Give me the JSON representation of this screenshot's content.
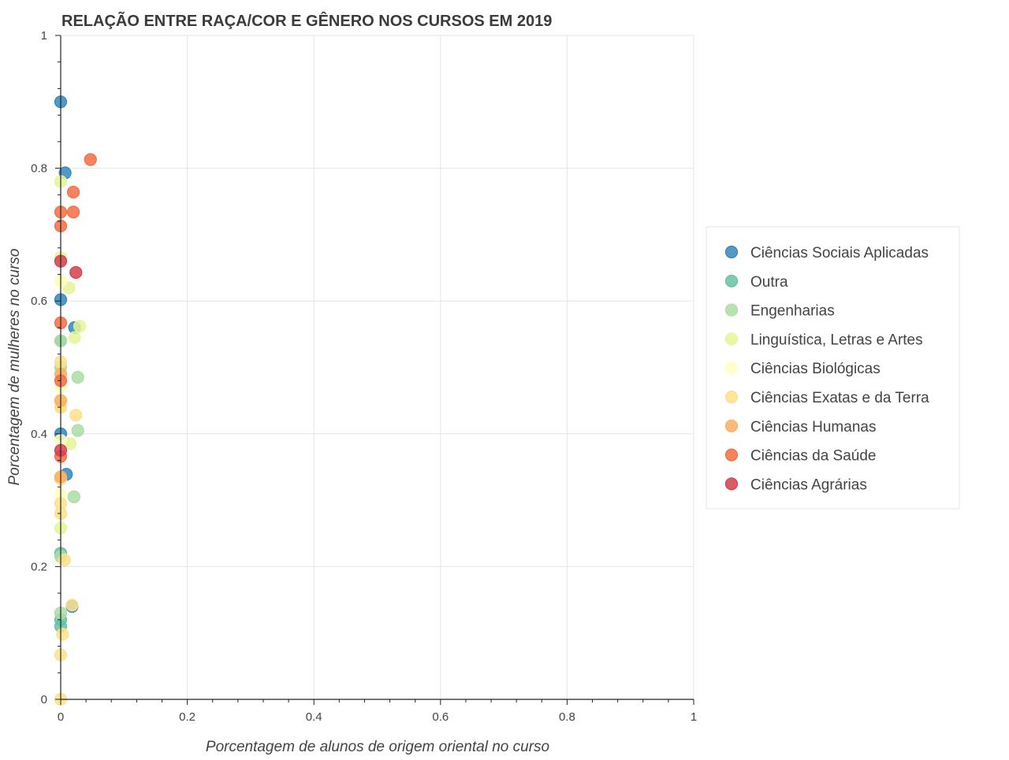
{
  "chart_data": {
    "type": "scatter",
    "title": "RELAÇÃO ENTRE RAÇA/COR E GÊNERO NOS CURSOS EM 2019",
    "xlabel": "Porcentagem de alunos de origem oriental no curso",
    "ylabel": "Porcentagem de mulheres no curso",
    "xlim": [
      0,
      1
    ],
    "ylim": [
      0,
      1
    ],
    "x_ticks": [
      "0",
      "0.2",
      "0.4",
      "0.6",
      "0.8",
      "1"
    ],
    "y_ticks": [
      "0",
      "0.2",
      "0.4",
      "0.6",
      "0.8",
      "1"
    ],
    "grid": true,
    "legend_position": "right",
    "series": [
      {
        "name": "Ciências Sociais Aplicadas",
        "color": "#3288bd",
        "points": [
          [
            0.0,
            0.9
          ],
          [
            0.007,
            0.793
          ],
          [
            0.0,
            0.602
          ],
          [
            0.022,
            0.56
          ],
          [
            0.009,
            0.339
          ],
          [
            0.0,
            0.4
          ],
          [
            0.018,
            0.14
          ]
        ]
      },
      {
        "name": "Outra",
        "color": "#66c2a5",
        "points": [
          [
            0.0,
            0.54
          ],
          [
            0.0,
            0.12
          ],
          [
            0.0,
            0.11
          ],
          [
            0.0,
            0.22
          ]
        ]
      },
      {
        "name": "Engenharias",
        "color": "#abdda4",
        "points": [
          [
            0.027,
            0.485
          ],
          [
            0.027,
            0.405
          ],
          [
            0.021,
            0.305
          ],
          [
            0.0,
            0.5
          ],
          [
            0.0,
            0.215
          ],
          [
            0.0,
            0.13
          ],
          [
            0.0,
            0.54
          ]
        ]
      },
      {
        "name": "Linguística, Letras e Artes",
        "color": "#e6f598",
        "points": [
          [
            0.0,
            0.665
          ],
          [
            0.0,
            0.63
          ],
          [
            0.013,
            0.62
          ],
          [
            0.022,
            0.545
          ],
          [
            0.03,
            0.562
          ],
          [
            0.015,
            0.385
          ],
          [
            0.0,
            0.258
          ],
          [
            0.0,
            0.45
          ],
          [
            0.0,
            0.78
          ]
        ]
      },
      {
        "name": "Ciências Biológicas",
        "color": "#ffffbf",
        "points": [
          [
            0.0,
            0.63
          ],
          [
            0.0,
            0.47
          ],
          [
            0.0,
            0.39
          ],
          [
            0.0,
            0.31
          ]
        ]
      },
      {
        "name": "Ciências Exatas e da Terra",
        "color": "#fee08b",
        "points": [
          [
            0.024,
            0.428
          ],
          [
            0.0,
            0.508
          ],
          [
            0.0,
            0.44
          ],
          [
            0.0,
            0.332
          ],
          [
            0.0,
            0.295
          ],
          [
            0.0,
            0.28
          ],
          [
            0.006,
            0.21
          ],
          [
            0.018,
            0.142
          ],
          [
            0.003,
            0.098
          ],
          [
            0.0,
            0.067
          ],
          [
            0.0,
            0.0
          ],
          [
            0.0,
            0.44
          ]
        ]
      },
      {
        "name": "Ciências Humanas",
        "color": "#fdae61",
        "points": [
          [
            0.0,
            0.49
          ],
          [
            0.0,
            0.335
          ],
          [
            0.0,
            0.45
          ]
        ]
      },
      {
        "name": "Ciências da Saúde",
        "color": "#f46d43",
        "points": [
          [
            0.047,
            0.813
          ],
          [
            0.02,
            0.764
          ],
          [
            0.02,
            0.734
          ],
          [
            0.0,
            0.734
          ],
          [
            0.0,
            0.713
          ],
          [
            0.0,
            0.567
          ],
          [
            0.0,
            0.48
          ],
          [
            0.0,
            0.366
          ]
        ]
      },
      {
        "name": "Ciências Agrárias",
        "color": "#d53e4f",
        "points": [
          [
            0.024,
            0.643
          ],
          [
            0.0,
            0.66
          ],
          [
            0.0,
            0.375
          ]
        ]
      }
    ]
  }
}
